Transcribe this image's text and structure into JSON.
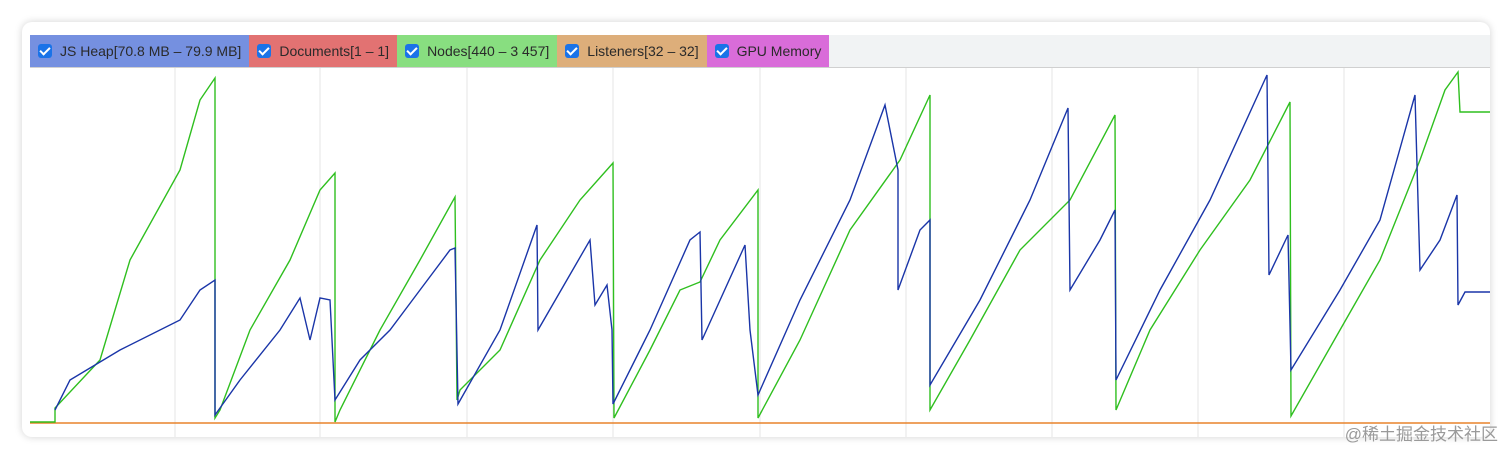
{
  "legend": {
    "items": [
      {
        "label": "JS Heap[70.8 MB – 79.9 MB]",
        "color": "#7590e0"
      },
      {
        "label": "Documents[1 – 1]",
        "color": "#e27272"
      },
      {
        "label": "Nodes[440 – 3 457]",
        "color": "#88de80"
      },
      {
        "label": "Listeners[32 – 32]",
        "color": "#ddae7a"
      },
      {
        "label": "GPU Memory",
        "color": "#d96cd9"
      }
    ]
  },
  "watermark": "@稀土掘金技术社区"
}
